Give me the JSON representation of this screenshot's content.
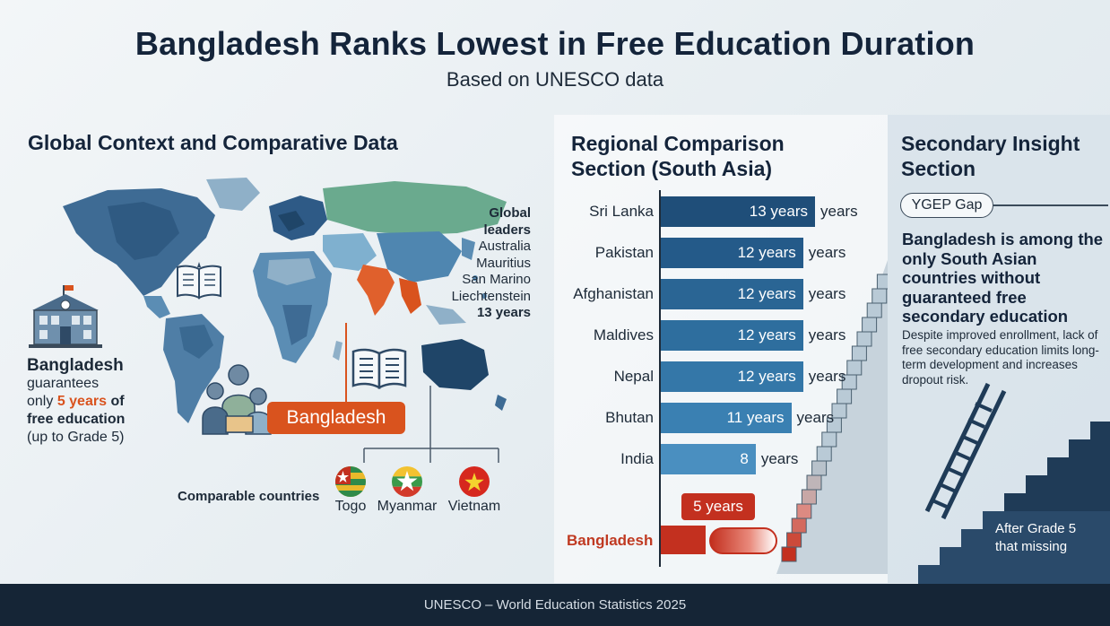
{
  "header": {
    "title": "Bangladesh Ranks Lowest in Free Education Duration",
    "subtitle": "Based on UNESCO data"
  },
  "global": {
    "heading": "Global Context and Comparative Data",
    "leaders_heading": "Global leaders",
    "leaders": [
      "Australia",
      "Mauritius",
      "San Marino",
      "Liechtenstein"
    ],
    "leaders_years": "13 years",
    "bangladesh_tag": "Bangladesh",
    "summary": {
      "country": "Bangladesh",
      "line1": "guarantees",
      "line2_pre": "only",
      "highlight": "5 years",
      "line2_post": "of",
      "line3": "free education",
      "line4": "(up to Grade 5)"
    },
    "comparable_label": "Comparable countries",
    "comparable": [
      "Togo",
      "Myanmar",
      "Vietnam"
    ]
  },
  "regional": {
    "heading_line1": "Regional Comparison",
    "heading_line2": "Section (South Asia)",
    "bd_callout": "5 years"
  },
  "chart_data": {
    "type": "bar",
    "orientation": "horizontal",
    "categories": [
      "Sri Lanka",
      "Pakistan",
      "Afghanistan",
      "Maldives",
      "Nepal",
      "Bhutan",
      "India",
      "Bangladesh"
    ],
    "values": [
      13,
      12,
      12,
      12,
      12,
      11,
      8,
      5
    ],
    "value_labels": [
      "13 years",
      "12 years",
      "12 years",
      "12 years",
      "12 years",
      "11 years",
      "8",
      ""
    ],
    "unit_label": "years",
    "xlim": [
      0,
      13
    ]
  },
  "insight": {
    "heading_line1": "Secondary Insight",
    "heading_line2": "Section",
    "tag": "YGEP Gap",
    "statement": "Bangladesh is among the only South Asian countries without guaranteed free secondary education",
    "body": "Despite improved enrollment, lack of free secondary education limits long-term development and increases dropout risk.",
    "after_grade_line1": "After Grade 5",
    "after_grade_line2": "that missing"
  },
  "footer": {
    "source": "UNESCO – World Education Statistics 2025"
  },
  "colors": {
    "bar_dark": "#1f4e79",
    "bar_mid": "#2e6e9e",
    "bar_light": "#3f89bd",
    "bangladesh": "#c3301f",
    "accent_orange": "#d9531e",
    "footer_bg": "#152536"
  }
}
